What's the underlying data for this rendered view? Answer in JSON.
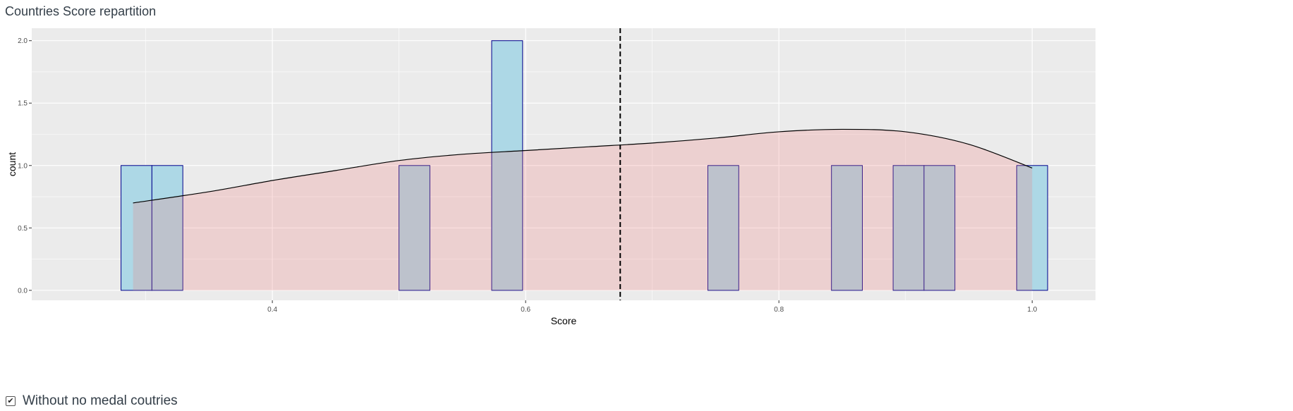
{
  "page": {
    "title": "Countries Score repartition"
  },
  "controls": {
    "without_no_medal": {
      "label": "Without no medal coutries",
      "checked": true
    }
  },
  "chart_data": {
    "type": "histogram",
    "title": "",
    "xlabel": "Score",
    "ylabel": "count",
    "xlim": [
      0.21,
      1.05
    ],
    "ylim": [
      -0.08,
      2.1
    ],
    "x_ticks": [
      0.4,
      0.6,
      0.8,
      1.0
    ],
    "x_tick_labels": [
      "0.4",
      "0.6",
      "0.8",
      "1.0"
    ],
    "y_ticks": [
      0.0,
      0.5,
      1.0,
      1.5,
      2.0
    ],
    "y_tick_labels": [
      "0.0",
      "0.5",
      "1.0",
      "1.5",
      "2.0"
    ],
    "grid": true,
    "bin_width": 0.0244,
    "bins": [
      {
        "x_start": 0.2805,
        "x_end": 0.3049,
        "count": 1
      },
      {
        "x_start": 0.3049,
        "x_end": 0.3293,
        "count": 1
      },
      {
        "x_start": 0.5,
        "x_end": 0.5244,
        "count": 1
      },
      {
        "x_start": 0.5732,
        "x_end": 0.5976,
        "count": 2
      },
      {
        "x_start": 0.7439,
        "x_end": 0.7683,
        "count": 1
      },
      {
        "x_start": 0.8415,
        "x_end": 0.8659,
        "count": 1
      },
      {
        "x_start": 0.8902,
        "x_end": 0.9146,
        "count": 1
      },
      {
        "x_start": 0.9146,
        "x_end": 0.939,
        "count": 1
      },
      {
        "x_start": 0.9878,
        "x_end": 1.0122,
        "count": 1
      }
    ],
    "density": {
      "x": [
        0.29,
        0.35,
        0.4,
        0.45,
        0.5,
        0.55,
        0.6,
        0.65,
        0.7,
        0.75,
        0.8,
        0.85,
        0.9,
        0.95,
        1.0
      ],
      "y": [
        0.7,
        0.79,
        0.88,
        0.96,
        1.04,
        1.09,
        1.12,
        1.15,
        1.18,
        1.22,
        1.27,
        1.29,
        1.27,
        1.17,
        0.98
      ]
    },
    "mean_line_x": 0.6747,
    "colors": {
      "panel_bg": "#ebebeb",
      "grid": "#ffffff",
      "bar_fill": "#add8e6",
      "bar_stroke": "#00008b",
      "density_fill": "#f08080",
      "density_fill_opacity": 0.25,
      "density_line": "#000000",
      "mean_line": "#000000"
    }
  }
}
